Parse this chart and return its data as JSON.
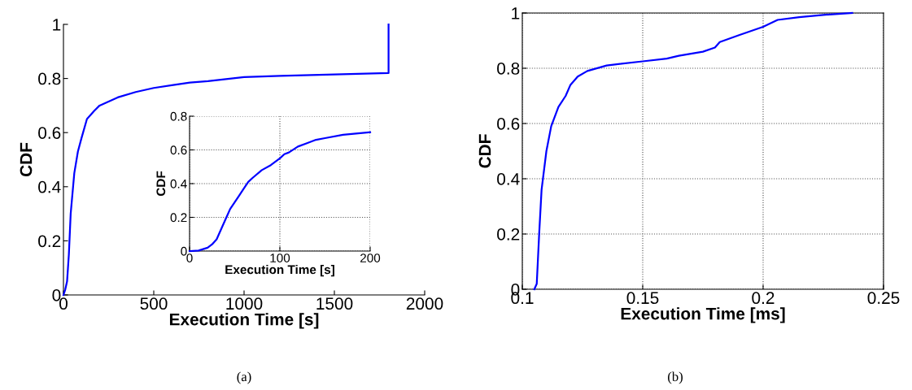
{
  "chart_data": [
    {
      "type": "line",
      "xlabel": "Execution Time [s]",
      "ylabel": "CDF",
      "grid": false,
      "annotations": [
        "(a)"
      ],
      "x": [
        0,
        10,
        20,
        30,
        40,
        60,
        80,
        100,
        130,
        170,
        200,
        300,
        400,
        500,
        600,
        700,
        800,
        1000,
        1200,
        1800,
        1800
      ],
      "series": [
        {
          "color": "#0000ff",
          "values": [
            0,
            0.02,
            0.05,
            0.15,
            0.3,
            0.45,
            0.53,
            0.58,
            0.65,
            0.68,
            0.7,
            0.73,
            0.75,
            0.765,
            0.775,
            0.785,
            0.79,
            0.805,
            0.81,
            0.82,
            1.0
          ]
        }
      ],
      "xlim": [
        0,
        2000
      ],
      "ylim": [
        0,
        1
      ],
      "xticks": [
        0,
        500,
        1000,
        1500,
        2000
      ],
      "yticks": [
        0,
        0.2,
        0.4,
        0.6,
        0.8,
        1
      ]
    },
    {
      "type": "line",
      "xlabel": "Execution Time [s]",
      "ylabel": "CDF",
      "grid": true,
      "x": [
        0,
        10,
        20,
        25,
        30,
        35,
        40,
        45,
        50,
        55,
        60,
        65,
        70,
        80,
        90,
        100,
        105,
        110,
        120,
        130,
        140,
        150,
        170,
        200
      ],
      "series": [
        {
          "color": "#0000ff",
          "values": [
            0,
            0.003,
            0.02,
            0.04,
            0.07,
            0.13,
            0.19,
            0.25,
            0.29,
            0.33,
            0.37,
            0.41,
            0.435,
            0.48,
            0.51,
            0.55,
            0.575,
            0.585,
            0.62,
            0.64,
            0.66,
            0.67,
            0.69,
            0.705
          ]
        }
      ],
      "xlim": [
        0,
        200
      ],
      "ylim": [
        0,
        0.8
      ],
      "xticks": [
        0,
        100,
        200
      ],
      "yticks": [
        0,
        0.2,
        0.4,
        0.6,
        0.8
      ]
    },
    {
      "type": "line",
      "xlabel": "Execution Time [ms]",
      "ylabel": "CDF",
      "grid": true,
      "annotations": [
        "(b)"
      ],
      "x": [
        0.105,
        0.106,
        0.107,
        0.108,
        0.11,
        0.112,
        0.115,
        0.118,
        0.12,
        0.123,
        0.127,
        0.135,
        0.15,
        0.16,
        0.165,
        0.175,
        0.18,
        0.182,
        0.19,
        0.2,
        0.206,
        0.215,
        0.225,
        0.237
      ],
      "series": [
        {
          "color": "#0000ff",
          "values": [
            0,
            0.02,
            0.2,
            0.36,
            0.5,
            0.59,
            0.66,
            0.7,
            0.74,
            0.77,
            0.79,
            0.81,
            0.825,
            0.835,
            0.845,
            0.86,
            0.875,
            0.895,
            0.92,
            0.95,
            0.975,
            0.985,
            0.993,
            1.0
          ]
        }
      ],
      "xlim": [
        0.1,
        0.25
      ],
      "ylim": [
        0,
        1
      ],
      "xticks": [
        0.1,
        0.15,
        0.2,
        0.25
      ],
      "yticks": [
        0,
        0.2,
        0.4,
        0.6,
        0.8,
        1
      ]
    }
  ]
}
